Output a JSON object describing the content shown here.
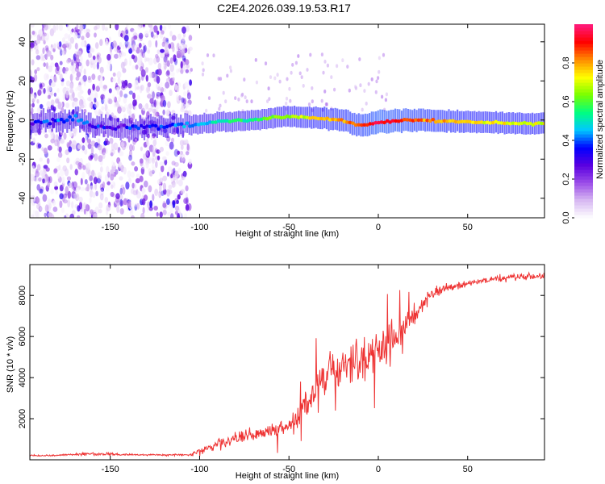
{
  "title": "C2E4.2026.039.19.53.R17",
  "chart_data": [
    {
      "type": "heatmap",
      "panel": "spectrogram",
      "xlabel": "Height of straight line (km)",
      "ylabel": "Frequency (Hz)",
      "xlim": [
        -195,
        93
      ],
      "ylim": [
        -50,
        49
      ],
      "xticks": [
        -150,
        -100,
        -50,
        0,
        50
      ],
      "yticks": [
        -40,
        -20,
        0,
        20,
        40
      ],
      "colorbar": {
        "label": "Normalized spectral amplitude",
        "range": [
          0,
          1
        ],
        "ticks": [
          0.0,
          0.2,
          0.4,
          0.6,
          0.8
        ],
        "colormap": [
          "#ffffff",
          "#d7b9f2",
          "#9b4de8",
          "#5a00e0",
          "#0000ff",
          "#00c8ff",
          "#00ff80",
          "#78ff00",
          "#ffff00",
          "#ff8c00",
          "#ff0000",
          "#ff1a80"
        ]
      },
      "ridge": [
        {
          "x": -195,
          "freq": -2,
          "amp": 0.3
        },
        {
          "x": -170,
          "freq": 1,
          "amp": 0.45
        },
        {
          "x": -160,
          "freq": -3,
          "amp": 0.35
        },
        {
          "x": -150,
          "freq": -4,
          "amp": 0.3
        },
        {
          "x": -110,
          "freq": -3,
          "amp": 0.4
        },
        {
          "x": -90,
          "freq": -1,
          "amp": 0.5
        },
        {
          "x": -70,
          "freq": 0,
          "amp": 0.55
        },
        {
          "x": -50,
          "freq": 2,
          "amp": 0.65
        },
        {
          "x": -35,
          "freq": 1,
          "amp": 0.75
        },
        {
          "x": -20,
          "freq": 0,
          "amp": 0.8
        },
        {
          "x": -10,
          "freq": -3,
          "amp": 0.85
        },
        {
          "x": 0,
          "freq": -1,
          "amp": 0.95
        },
        {
          "x": 20,
          "freq": 0,
          "amp": 0.85
        },
        {
          "x": 50,
          "freq": -1,
          "amp": 0.75
        },
        {
          "x": 93,
          "freq": -2,
          "amp": 0.7
        }
      ],
      "noise_region_x": [
        -195,
        -105
      ]
    },
    {
      "type": "line",
      "panel": "snr",
      "xlabel": "Height of straight line (km)",
      "ylabel": "SNR (10 * v/v)",
      "xlim": [
        -195,
        93
      ],
      "ylim": [
        0,
        9500
      ],
      "xticks": [
        -150,
        -100,
        -50,
        0,
        50
      ],
      "yticks": [
        2000,
        4000,
        6000,
        8000
      ],
      "series": [
        {
          "name": "SNR",
          "color": "#ee3333",
          "x": [
            -195,
            -180,
            -160,
            -140,
            -120,
            -105,
            -100,
            -90,
            -80,
            -70,
            -60,
            -50,
            -45,
            -40,
            -35,
            -30,
            -25,
            -20,
            -15,
            -10,
            -5,
            0,
            5,
            10,
            15,
            20,
            25,
            30,
            40,
            50,
            60,
            70,
            80,
            93
          ],
          "y": [
            200,
            220,
            300,
            250,
            230,
            250,
            400,
            700,
            1000,
            1200,
            1500,
            1600,
            2000,
            2800,
            3500,
            4000,
            4300,
            4500,
            4700,
            4900,
            5200,
            5200,
            5500,
            6000,
            6500,
            7000,
            7600,
            8100,
            8400,
            8600,
            8750,
            8850,
            8900,
            8950
          ],
          "spread": [
            60,
            60,
            120,
            70,
            60,
            120,
            250,
            400,
            500,
            600,
            600,
            700,
            900,
            1000,
            1400,
            1400,
            1400,
            1400,
            1500,
            1500,
            1600,
            1600,
            1500,
            1200,
            1000,
            800,
            600,
            400,
            300,
            250,
            250,
            250,
            250,
            250
          ]
        }
      ]
    }
  ]
}
